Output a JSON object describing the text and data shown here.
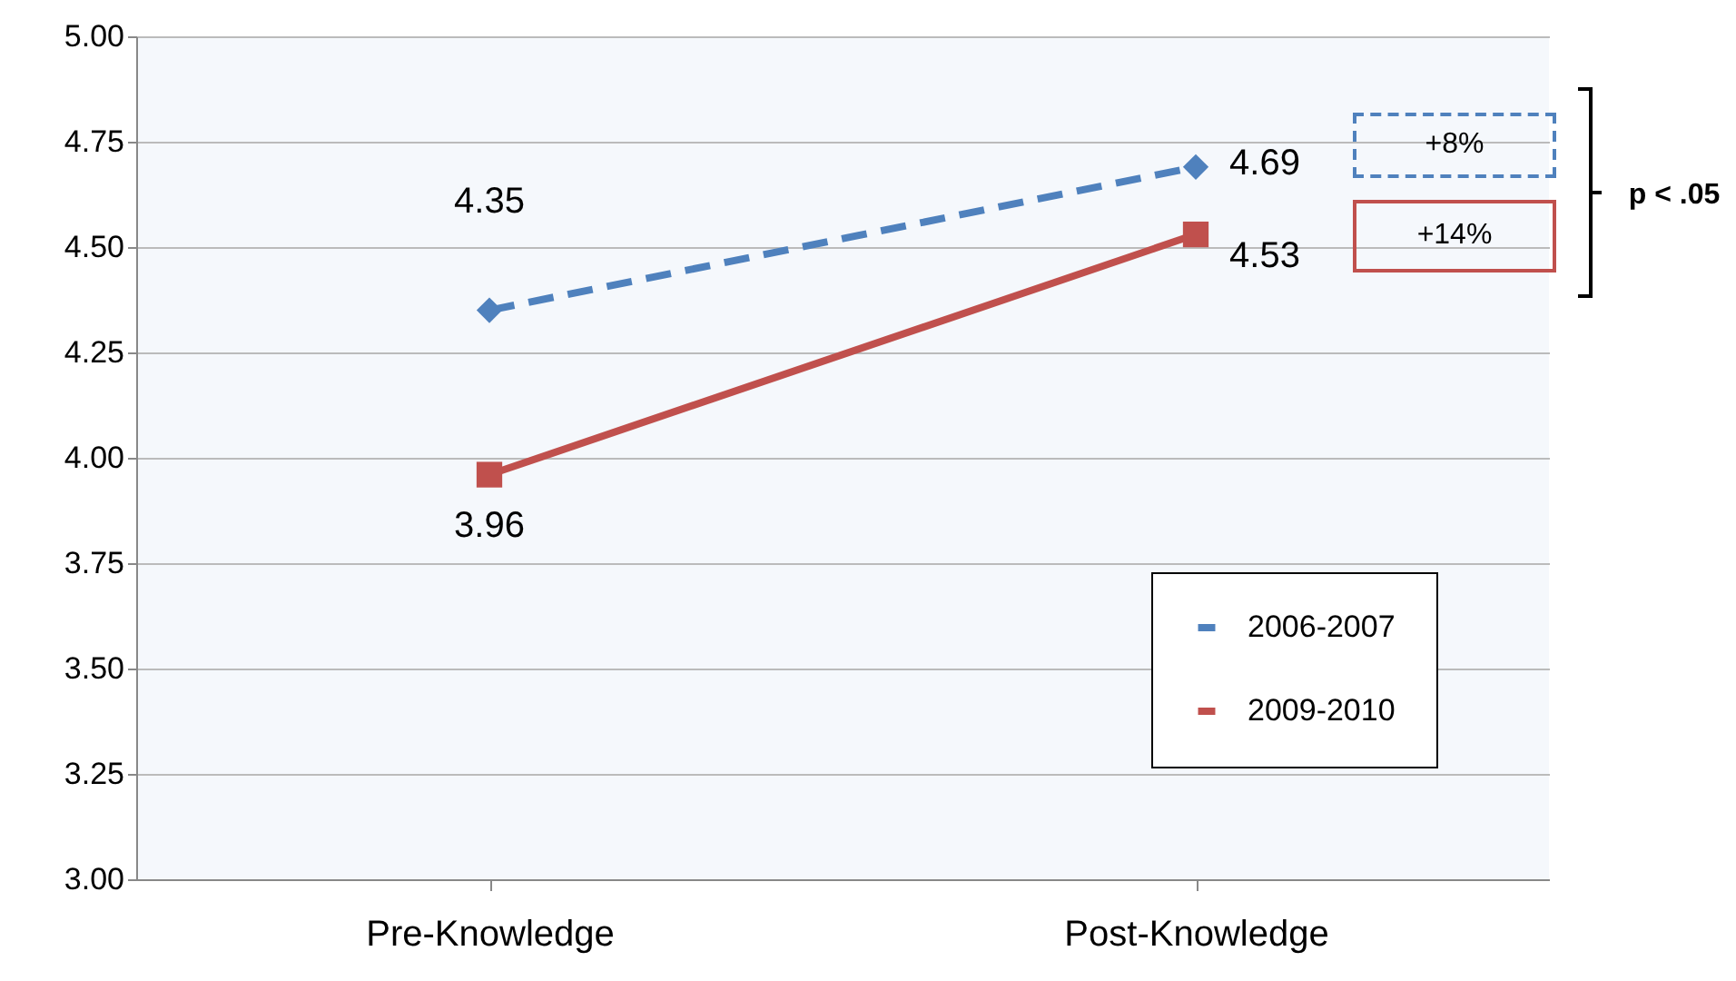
{
  "chart_data": {
    "type": "line",
    "categories": [
      "Pre-Knowledge",
      "Post-Knowledge"
    ],
    "series": [
      {
        "name": "2006-2007",
        "color": "#4f81bd",
        "values": [
          4.35,
          4.69
        ],
        "marker": "diamond",
        "line_style": "dashed"
      },
      {
        "name": "2009-2010",
        "color": "#c0504d",
        "values": [
          3.96,
          4.53
        ],
        "marker": "square",
        "line_style": "solid"
      }
    ],
    "ylim": [
      3,
      5
    ],
    "yticks": [
      {
        "value": 3,
        "label": "3.00"
      },
      {
        "value": 3.25,
        "label": "3.25"
      },
      {
        "value": 3.5,
        "label": "3.50"
      },
      {
        "value": 3.75,
        "label": "3.75"
      },
      {
        "value": 4,
        "label": "4.00"
      },
      {
        "value": 4.25,
        "label": "4.25"
      },
      {
        "value": 4.5,
        "label": "4.50"
      },
      {
        "value": 4.75,
        "label": "4.75"
      },
      {
        "value": 5,
        "label": "5.00"
      }
    ],
    "grid": "y",
    "legend": "bottom right",
    "data_labels": true,
    "annotations": [
      "+8%",
      "+14%",
      "p < .05"
    ]
  }
}
